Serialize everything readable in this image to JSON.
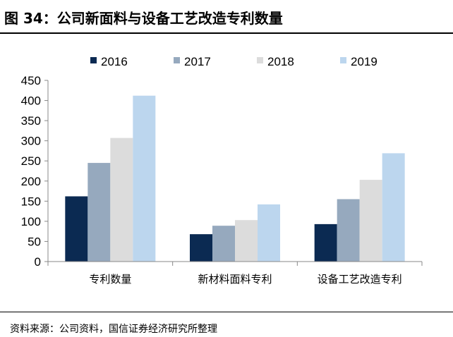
{
  "figure": {
    "title": "图 34：公司新面料与设备工艺改造专利数量",
    "source": "资料来源：公司资料，国信证券经济研究所整理"
  },
  "chart_data": {
    "type": "bar",
    "title": "",
    "xlabel": "",
    "ylabel": "",
    "categories": [
      "专利数量",
      "新材料面料专利",
      "设备工艺改造专利"
    ],
    "series": [
      {
        "name": "2016",
        "color": "#0b2a52",
        "values": [
          162,
          68,
          93
        ]
      },
      {
        "name": "2017",
        "color": "#96a9be",
        "values": [
          245,
          89,
          155
        ]
      },
      {
        "name": "2018",
        "color": "#dcdcdc",
        "values": [
          307,
          103,
          203
        ]
      },
      {
        "name": "2019",
        "color": "#bcd6ee",
        "values": [
          412,
          142,
          269
        ]
      }
    ],
    "ylim": [
      0,
      450
    ],
    "yticks": [
      0,
      50,
      100,
      150,
      200,
      250,
      300,
      350,
      400,
      450
    ],
    "grid": false,
    "legend_position": "top"
  }
}
